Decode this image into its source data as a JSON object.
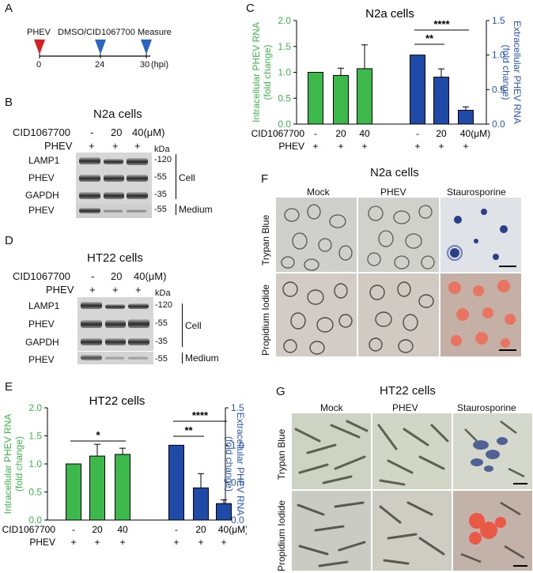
{
  "panelA": {
    "letter": "A",
    "labels": [
      "PHEV",
      "DMSO/CID1067700",
      "Measure"
    ],
    "ticks": [
      "0",
      "24",
      "30",
      "(hpi)"
    ]
  },
  "panelB": {
    "letter": "B",
    "title": "N2a cells",
    "treatment": "CID1067700",
    "doses": [
      "-",
      "20",
      "40(μM)"
    ],
    "phev_label": "PHEV",
    "phev_signs": [
      "+",
      "+",
      "+"
    ],
    "kda": "kDa",
    "rows": [
      "LAMP1",
      "PHEV",
      "GAPDH",
      "PHEV"
    ],
    "sizes": [
      "-120",
      "-55",
      "-35",
      "-55"
    ],
    "cell": "Cell",
    "medium": "Medium"
  },
  "panelD": {
    "letter": "D",
    "title": "HT22 cells",
    "treatment": "CID1067700",
    "doses": [
      "-",
      "20",
      "40(μM)"
    ],
    "phev_label": "PHEV",
    "phev_signs": [
      "+",
      "+",
      "+"
    ],
    "kda": "kDa",
    "rows": [
      "LAMP1",
      "PHEV",
      "GAPDH",
      "PHEV"
    ],
    "sizes": [
      "-120",
      "-55",
      "-35",
      "-55"
    ],
    "cell": "Cell",
    "medium": "Medium"
  },
  "panelF": {
    "letter": "F",
    "title": "N2a cells",
    "cols": [
      "Mock",
      "PHEV",
      "Staurosporine"
    ],
    "rows": [
      "Trypan Blue",
      "Propidium Iodide"
    ]
  },
  "panelG": {
    "letter": "G",
    "title": "HT22 cells",
    "cols": [
      "Mock",
      "PHEV",
      "Staurosporine"
    ],
    "rows": [
      "Trypan Blue",
      "Propidium Iodide"
    ]
  },
  "colors": {
    "green": "#3cb94a",
    "blue": "#1f4aa8",
    "green_text": "#3cb94a",
    "blue_text": "#2a56b8"
  },
  "chart_data": [
    {
      "panel": "C",
      "type": "bar",
      "title": "N2a cells",
      "ylabel_left": "Intracellular PHEV RNA (fold change)",
      "ylabel_right": "Extracellular PHEV RNA (fold change)",
      "ylim_left": [
        0,
        2.0
      ],
      "ylim_right": [
        0,
        1.5
      ],
      "yticks_left": [
        "0.0",
        "0.5",
        "1.0",
        "1.5",
        "2.0"
      ],
      "yticks_right": [
        "0.0",
        "0.5",
        "1.0",
        "1.5"
      ],
      "x_rows": {
        "CID1067700": [
          "-",
          "20",
          "40",
          "-",
          "20",
          "40(μM)"
        ],
        "PHEV": [
          "+",
          "+",
          "+",
          "+",
          "+",
          "+"
        ]
      },
      "series": [
        {
          "axis": "left",
          "values": [
            1.0,
            0.94,
            1.07
          ],
          "errors": [
            0.0,
            0.14,
            0.46
          ]
        },
        {
          "axis": "right",
          "values": [
            1.0,
            0.68,
            0.2
          ],
          "errors": [
            0.0,
            0.12,
            0.05
          ]
        }
      ],
      "significance": [
        "**",
        "****"
      ]
    },
    {
      "panel": "E",
      "type": "bar",
      "title": "HT22 cells",
      "ylabel_left": "Intracellular PHEV RNA (fold change)",
      "ylabel_right": "Extracellular PHEV RNA (fold change)",
      "ylim_left": [
        0,
        2.0
      ],
      "ylim_right": [
        0,
        1.5
      ],
      "yticks_left": [
        "0.0",
        "0.5",
        "1.0",
        "1.5",
        "2.0"
      ],
      "yticks_right": [
        "0.0",
        "0.5",
        "1.0",
        "1.5"
      ],
      "x_rows": {
        "CID1067700": [
          "-",
          "20",
          "40",
          "-",
          "20",
          "40(μM)"
        ],
        "PHEV": [
          "+",
          "+",
          "+",
          "+",
          "+",
          "+"
        ]
      },
      "series": [
        {
          "axis": "left",
          "values": [
            1.0,
            1.14,
            1.17
          ],
          "errors": [
            0.0,
            0.21,
            0.11
          ]
        },
        {
          "axis": "right",
          "values": [
            1.0,
            0.43,
            0.22
          ],
          "errors": [
            0.0,
            0.19,
            0.05
          ]
        }
      ],
      "significance": [
        "*",
        "**",
        "****"
      ]
    }
  ]
}
